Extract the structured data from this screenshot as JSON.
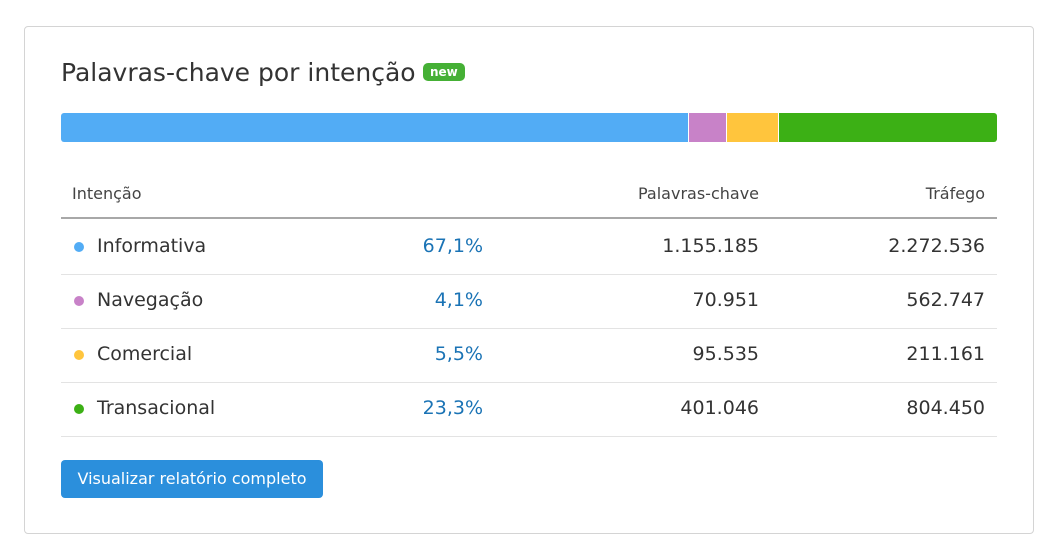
{
  "widget": {
    "title": "Palavras-chave por intenção",
    "badge": "new",
    "columns": [
      "Intenção",
      "Palavras-chave",
      "Tráfego"
    ],
    "rows": [
      {
        "name": "Informativa",
        "color": "#52acf5",
        "share": 67.1,
        "share_label": "67,1%",
        "keywords": "1.155.185",
        "traffic": "2.272.536"
      },
      {
        "name": "Navegação",
        "color": "#c882c8",
        "share": 4.1,
        "share_label": "4,1%",
        "keywords": "70.951",
        "traffic": "562.747"
      },
      {
        "name": "Comercial",
        "color": "#ffc53d",
        "share": 5.5,
        "share_label": "5,5%",
        "keywords": "95.535",
        "traffic": "211.161"
      },
      {
        "name": "Transacional",
        "color": "#3cb015",
        "share": 23.3,
        "share_label": "23,3%",
        "keywords": "401.046",
        "traffic": "804.450"
      }
    ],
    "button": "Visualizar relatório completo"
  }
}
